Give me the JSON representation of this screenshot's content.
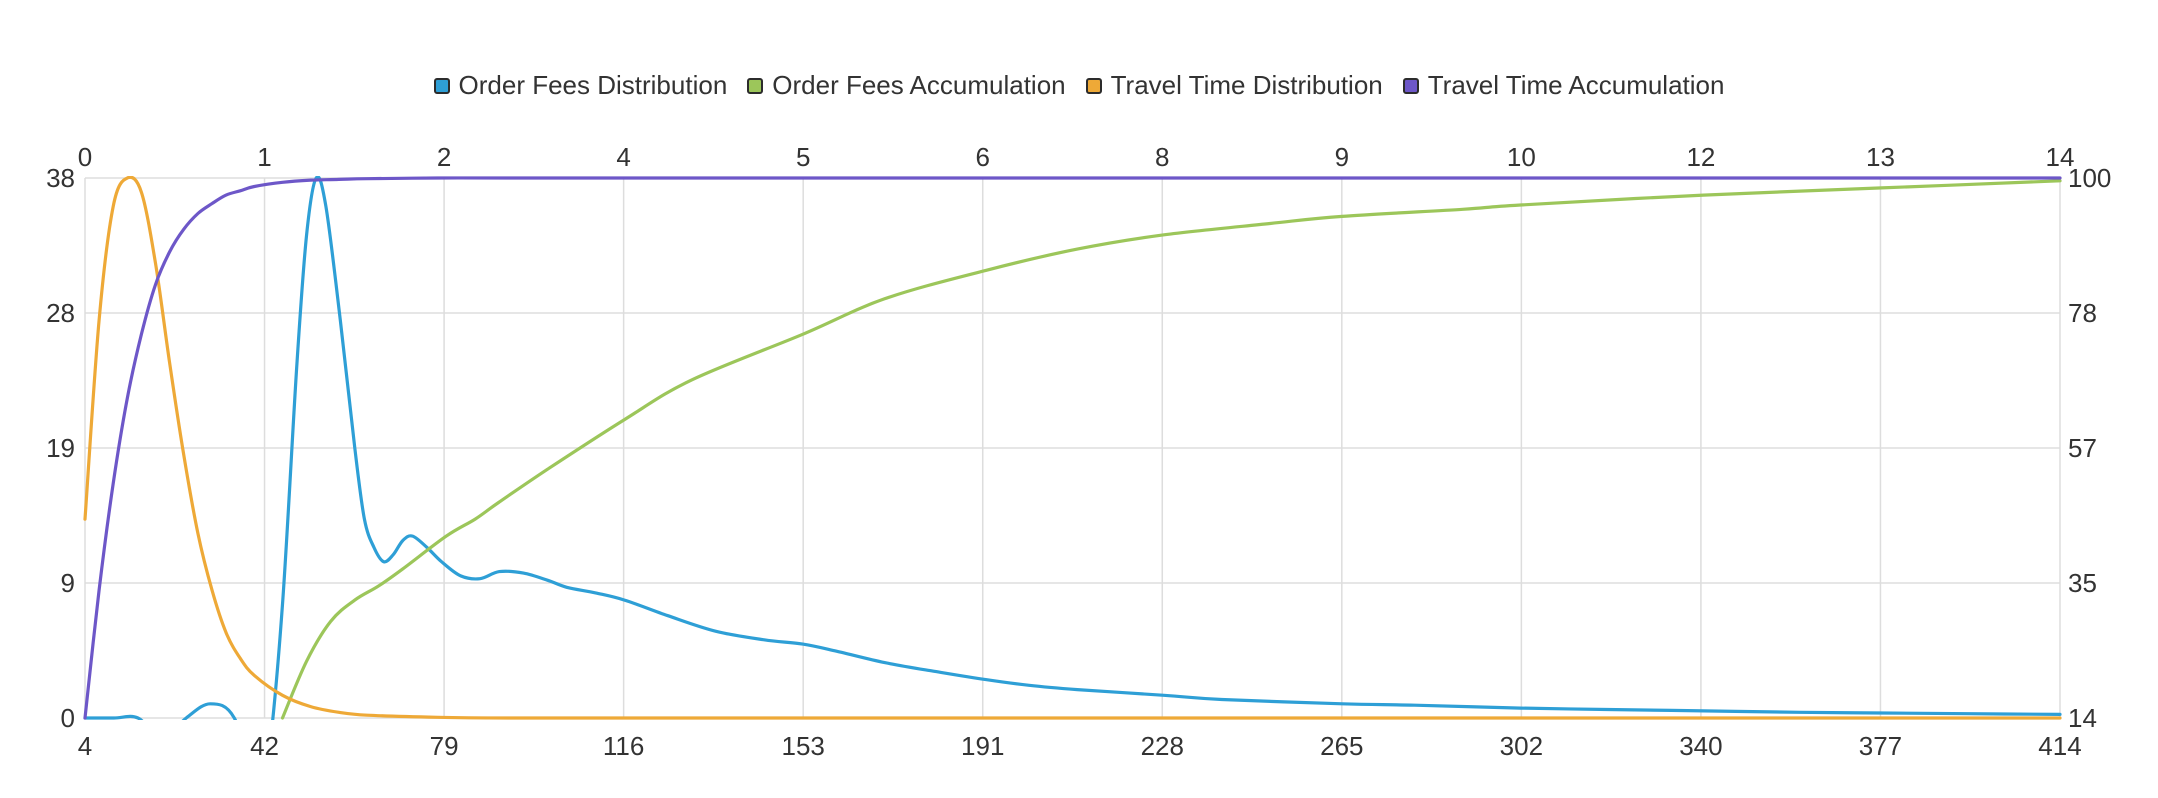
{
  "colors": {
    "order_fees_distribution": "#2e9fd6",
    "order_fees_accumulation": "#9cc65a",
    "travel_time_distribution": "#eea937",
    "travel_time_accumulation": "#6d57c8",
    "grid": "#dddddd"
  },
  "legend": [
    {
      "label": "Order Fees Distribution",
      "color": "#2e9fd6"
    },
    {
      "label": "Order Fees Accumulation",
      "color": "#9cc65a"
    },
    {
      "label": "Travel Time Distribution",
      "color": "#eea937"
    },
    {
      "label": "Travel Time Accumulation",
      "color": "#6d57c8"
    }
  ],
  "chart_data": {
    "type": "line",
    "title": "",
    "grid": true,
    "legend_position": "top",
    "axes": {
      "x_bottom": {
        "ticks": [
          "4",
          "42",
          "79",
          "116",
          "153",
          "191",
          "228",
          "265",
          "302",
          "340",
          "377",
          "414"
        ],
        "range": [
          4,
          414
        ]
      },
      "x_top": {
        "ticks": [
          "0",
          "1",
          "2",
          "4",
          "5",
          "6",
          "8",
          "9",
          "10",
          "12",
          "13",
          "14"
        ],
        "range": [
          0,
          14
        ]
      },
      "y_left": {
        "ticks": [
          "0",
          "9",
          "19",
          "28",
          "38"
        ],
        "range": [
          0,
          38
        ]
      },
      "y_right": {
        "ticks": [
          "14",
          "35",
          "57",
          "78",
          "100"
        ],
        "range": [
          14,
          100
        ]
      }
    },
    "series": [
      {
        "name": "Order Fees Distribution",
        "x_axis": "bottom",
        "y_axis": "left",
        "x": [
          4,
          10,
          15,
          20,
          25,
          30,
          35,
          40,
          42,
          45,
          48,
          50,
          52,
          54,
          57,
          60,
          62,
          64,
          66,
          68,
          70,
          72,
          75,
          78,
          82,
          86,
          90,
          95,
          100,
          104,
          110,
          116,
          125,
          135,
          145,
          153,
          160,
          170,
          180,
          191,
          200,
          210,
          228,
          240,
          265,
          280,
          302,
          320,
          340,
          360,
          377,
          395,
          414
        ],
        "y": [
          0,
          0,
          0,
          -1.5,
          0,
          1,
          0,
          -5,
          -3,
          8,
          25,
          34,
          38,
          36,
          28,
          19,
          14,
          12,
          11,
          11.5,
          12.5,
          12.8,
          12,
          11,
          10,
          9.8,
          10.3,
          10.2,
          9.7,
          9.2,
          8.8,
          8.3,
          7.2,
          6.1,
          5.5,
          5.2,
          4.7,
          3.9,
          3.3,
          2.7,
          2.3,
          2.0,
          1.6,
          1.3,
          1.0,
          0.9,
          0.7,
          0.6,
          0.5,
          0.4,
          0.35,
          0.3,
          0.25
        ]
      },
      {
        "name": "Order Fees Accumulation",
        "x_axis": "bottom",
        "y_axis": "left",
        "x": [
          45,
          50,
          55,
          60,
          65,
          70,
          79,
          85,
          90,
          100,
          116,
          130,
          153,
          170,
          191,
          210,
          228,
          250,
          265,
          290,
          302,
          340,
          377,
          414
        ],
        "y": [
          0,
          4,
          6.8,
          8.3,
          9.3,
          10.5,
          12.8,
          14,
          15.2,
          17.5,
          21,
          23.8,
          27,
          29.5,
          31.5,
          33,
          34,
          34.8,
          35.3,
          35.8,
          36.1,
          36.8,
          37.3,
          37.8
        ]
      },
      {
        "name": "Travel Time Distribution",
        "x_axis": "top",
        "y_axis": "left",
        "x": [
          0,
          0.1,
          0.2,
          0.3,
          0.4,
          0.5,
          0.6,
          0.7,
          0.8,
          0.9,
          1.0,
          1.1,
          1.2,
          1.4,
          1.6,
          1.8,
          2.0,
          2.5,
          3.0,
          4.0,
          6.0,
          10.0,
          14.0
        ],
        "y": [
          14,
          28,
          36,
          38,
          37,
          32,
          25,
          18.5,
          13,
          9,
          6,
          4.2,
          3,
          1.6,
          0.8,
          0.4,
          0.2,
          0.05,
          0,
          0,
          0,
          0,
          0
        ]
      },
      {
        "name": "Travel Time Accumulation",
        "x_axis": "top",
        "y_axis": "left",
        "x": [
          0,
          0.1,
          0.2,
          0.3,
          0.4,
          0.5,
          0.6,
          0.7,
          0.8,
          0.9,
          1.0,
          1.1,
          1.2,
          1.4,
          1.6,
          1.8,
          2.0,
          2.5,
          3.0,
          4.0,
          6.0,
          10.0,
          14.0
        ],
        "y": [
          0,
          9,
          16.5,
          22.5,
          27,
          30.5,
          32.8,
          34.4,
          35.5,
          36.2,
          36.8,
          37.1,
          37.4,
          37.7,
          37.85,
          37.9,
          37.95,
          38,
          38,
          38,
          38,
          38,
          38
        ]
      }
    ]
  }
}
